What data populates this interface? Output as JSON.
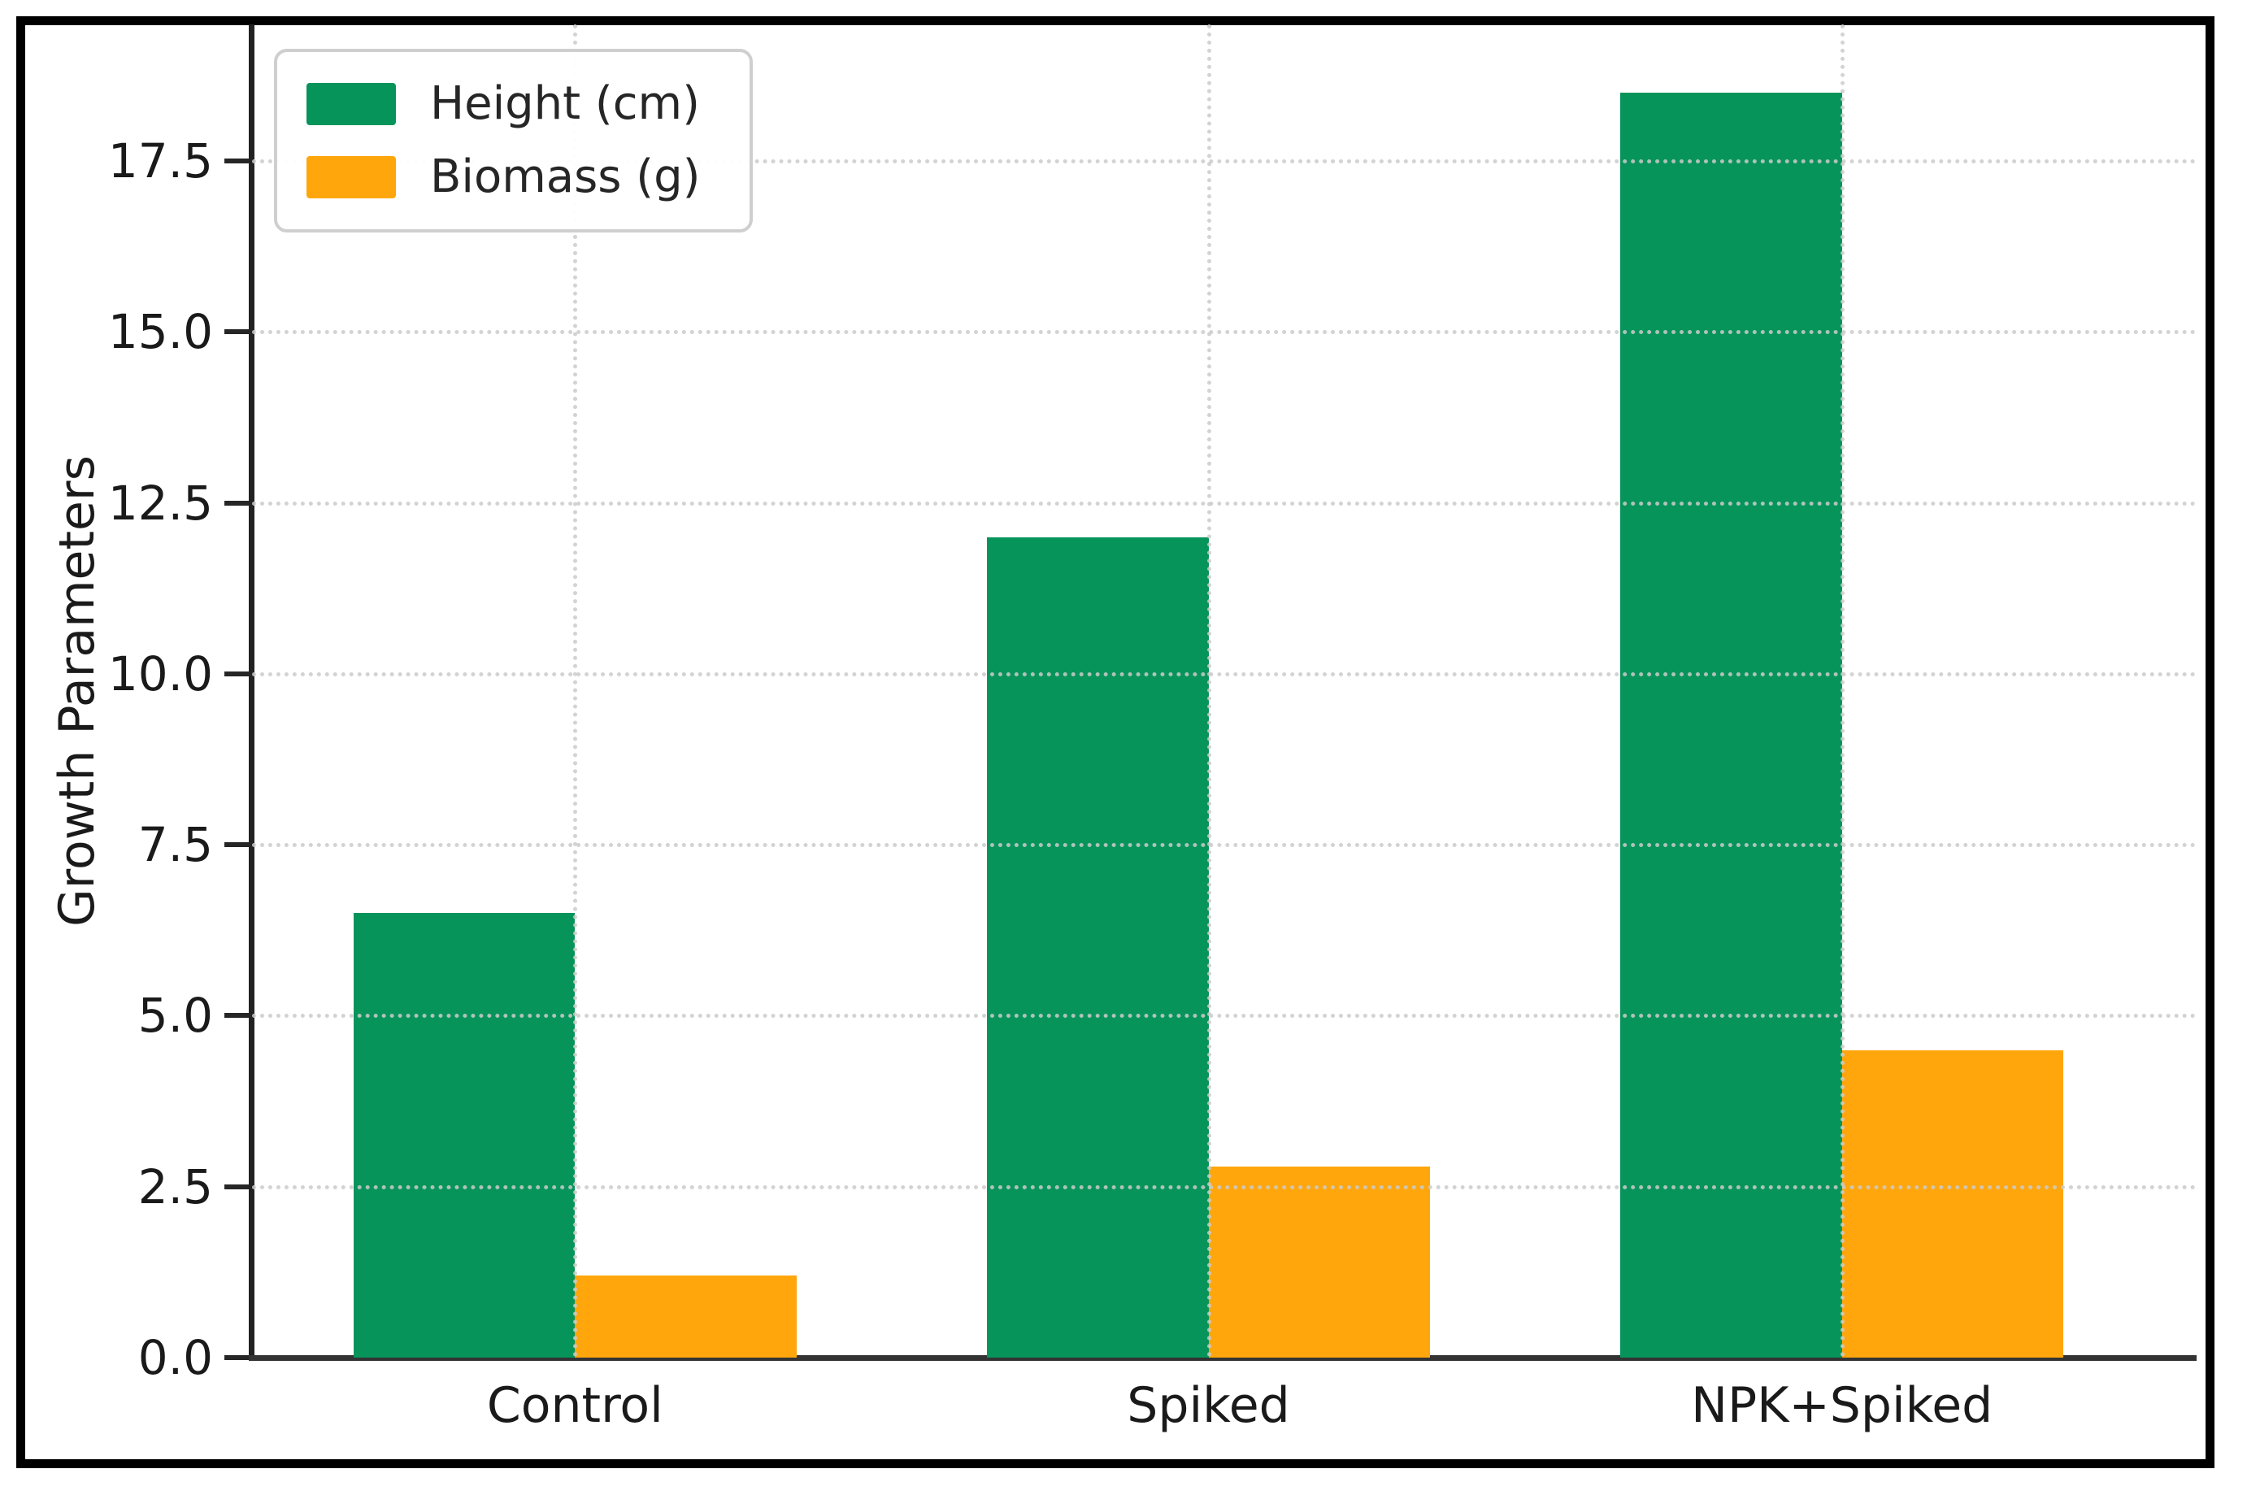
{
  "figure": {
    "background": "#ffffff",
    "frame_color": "#000000",
    "axis_color": "#262626",
    "grid_color": "#cbcbcb"
  },
  "chart_data": {
    "type": "bar",
    "title": "",
    "xlabel": "",
    "ylabel": "Growth Parameters",
    "categories": [
      "Control",
      "Spiked",
      "NPK+Spiked"
    ],
    "series": [
      {
        "name": "Height (cm)",
        "color": "#07945a",
        "values": [
          6.5,
          12.0,
          18.5
        ]
      },
      {
        "name": "Biomass (g)",
        "color": "#ffa60d",
        "values": [
          1.2,
          2.8,
          4.5
        ]
      }
    ],
    "ylim": [
      0,
      19.5
    ],
    "yticks": [
      0.0,
      2.5,
      5.0,
      7.5,
      10.0,
      12.5,
      15.0,
      17.5
    ],
    "ytick_labels": [
      "0.0",
      "2.5",
      "5.0",
      "7.5",
      "10.0",
      "12.5",
      "15.0",
      "17.5"
    ],
    "grid": true,
    "grid_style": "dotted",
    "legend_position": "upper-left",
    "bar_width_units": 0.35
  }
}
